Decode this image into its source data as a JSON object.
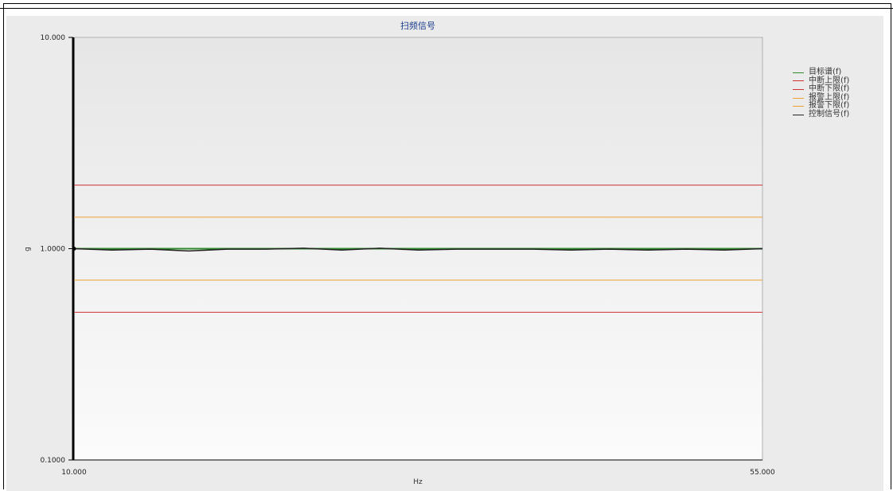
{
  "chart_data": {
    "type": "line",
    "title": "扫频信号",
    "xlabel": "Hz",
    "ylabel": "g",
    "xlim": [
      10.0,
      55.0
    ],
    "ylim": [
      0.1,
      10.0
    ],
    "y_scale": "log",
    "x_tick_labels": [
      "10.000",
      "55.000"
    ],
    "y_tick_labels": [
      "10.000",
      "1.0000",
      "0.1000"
    ],
    "legend_position": "right",
    "series": [
      {
        "name": "目标谱(f)",
        "color": "#2e8b2e",
        "x": [
          10.0,
          55.0
        ],
        "y": [
          1.0,
          1.0
        ]
      },
      {
        "name": "中断上限(f)",
        "color": "#cc3333",
        "x": [
          10.0,
          55.0
        ],
        "y": [
          2.0,
          2.0
        ]
      },
      {
        "name": "中断下限(f)",
        "color": "#cc3333",
        "x": [
          10.0,
          55.0
        ],
        "y": [
          0.5,
          0.5
        ]
      },
      {
        "name": "报警上限(f)",
        "color": "#f0a030",
        "x": [
          10.0,
          55.0
        ],
        "y": [
          1.41,
          1.41
        ]
      },
      {
        "name": "报警下限(f)",
        "color": "#f0a030",
        "x": [
          10.0,
          55.0
        ],
        "y": [
          0.71,
          0.71
        ]
      },
      {
        "name": "控制信号(f)",
        "color": "#222222",
        "x": [
          10.0,
          12.5,
          15.0,
          17.5,
          20.0,
          22.5,
          25.0,
          27.5,
          30.0,
          32.5,
          35.0,
          37.5,
          40.0,
          42.5,
          45.0,
          47.5,
          50.0,
          52.5,
          55.0
        ],
        "y": [
          1.0,
          0.99,
          0.99,
          0.98,
          0.99,
          1.0,
          1.0,
          0.99,
          1.0,
          0.99,
          0.99,
          1.0,
          0.99,
          0.99,
          0.99,
          0.99,
          0.99,
          0.99,
          1.0
        ]
      }
    ]
  }
}
